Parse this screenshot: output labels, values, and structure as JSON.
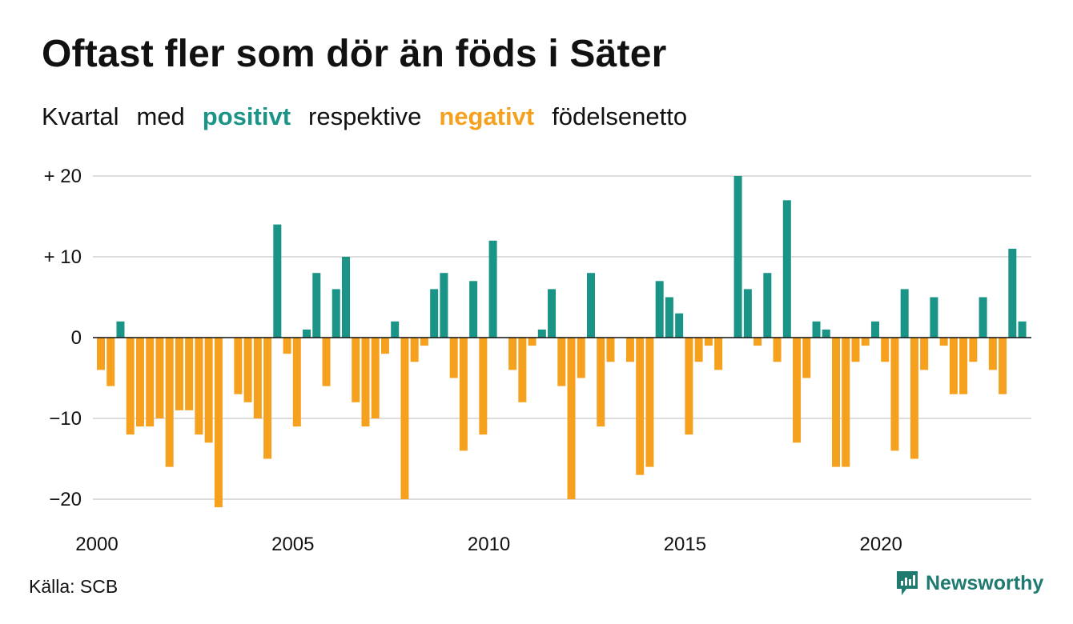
{
  "title": "Oftast fler som dör än föds i Säter",
  "subtitle": {
    "word1": "Kvartal",
    "word2": "med",
    "positive": "positivt",
    "word3": "respektive",
    "negative": "negativt",
    "word4": "födelsenetto"
  },
  "source": "Källa: SCB",
  "brand": "Newsworthy",
  "colors": {
    "positive": "#1a9486",
    "negative": "#f5a11e",
    "grid": "#dddddd",
    "brand": "#1f7a70"
  },
  "chart_data": {
    "type": "bar",
    "start_year": 2000,
    "quarters_per_year": 4,
    "ylim": [
      -22,
      21
    ],
    "y_ticks": [
      {
        "value": 20,
        "label": "+ 20"
      },
      {
        "value": 10,
        "label": "+ 10"
      },
      {
        "value": 0,
        "label": "0"
      },
      {
        "value": -10,
        "label": "−10"
      },
      {
        "value": -20,
        "label": "−20"
      }
    ],
    "x_ticks": [
      {
        "year": 2000,
        "label": "2000"
      },
      {
        "year": 2005,
        "label": "2005"
      },
      {
        "year": 2010,
        "label": "2010"
      },
      {
        "year": 2015,
        "label": "2015"
      },
      {
        "year": 2020,
        "label": "2020"
      }
    ],
    "values": [
      -4,
      -6,
      2,
      -12,
      -11,
      -11,
      -10,
      -16,
      -9,
      -9,
      -12,
      -13,
      -21,
      0,
      -7,
      -8,
      -10,
      -15,
      14,
      -2,
      -11,
      1,
      8,
      -6,
      6,
      10,
      -8,
      -11,
      -10,
      -2,
      2,
      -20,
      -3,
      -1,
      6,
      8,
      -5,
      -14,
      7,
      -12,
      12,
      0,
      -4,
      -8,
      -1,
      1,
      6,
      -6,
      -20,
      -5,
      8,
      -11,
      -3,
      0,
      -3,
      -17,
      -16,
      7,
      5,
      3,
      -12,
      -3,
      -1,
      -4,
      0,
      20,
      6,
      -1,
      8,
      -3,
      17,
      -13,
      -5,
      2,
      1,
      -16,
      -16,
      -3,
      -1,
      2,
      -3,
      -14,
      6,
      -15,
      -4,
      5,
      -1,
      -7,
      -7,
      -3,
      5,
      -4,
      -7,
      11,
      2
    ]
  }
}
